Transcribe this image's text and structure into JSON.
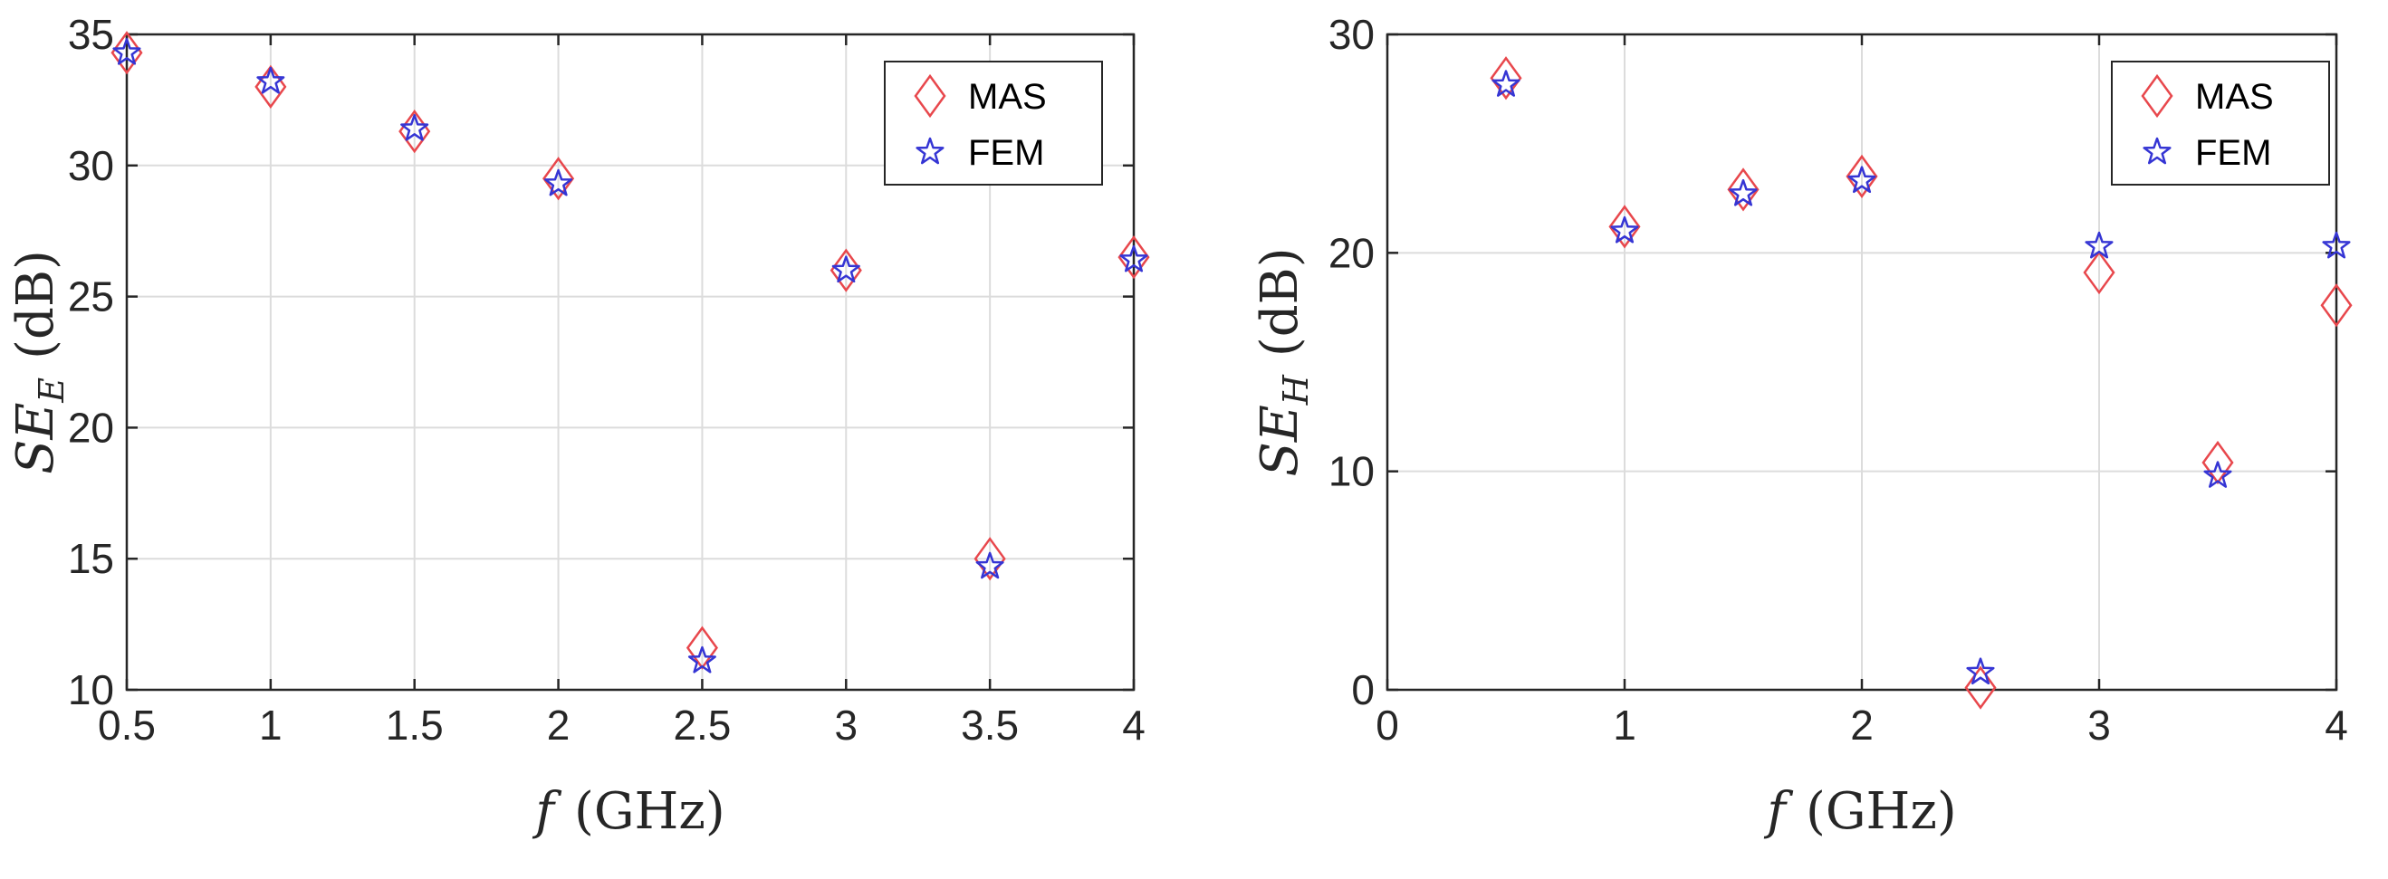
{
  "chart_data": [
    {
      "type": "scatter",
      "xlabel": {
        "symbol": "f",
        "unit": "(GHz)"
      },
      "ylabel": {
        "symbol": "SE",
        "subscript": "E",
        "unit": "(dB)"
      },
      "xlim": [
        0.5,
        4
      ],
      "ylim": [
        10,
        35
      ],
      "xticks": [
        "0.5",
        "1",
        "1.5",
        "2",
        "2.5",
        "3",
        "3.5",
        "4"
      ],
      "yticks": [
        "10",
        "15",
        "20",
        "25",
        "30",
        "35"
      ],
      "grid": true,
      "legend": "top-right",
      "series": [
        {
          "name": "MAS",
          "marker": "diamond",
          "color": "#e8474c",
          "x": [
            0.5,
            1,
            1.5,
            2,
            2.5,
            3,
            3.5,
            4
          ],
          "y": [
            34.3,
            33.0,
            31.3,
            29.5,
            11.6,
            26.0,
            15.0,
            26.5
          ]
        },
        {
          "name": "FEM",
          "marker": "star",
          "color": "#3535d4",
          "x": [
            0.5,
            1,
            1.5,
            2,
            2.5,
            3,
            3.5,
            4
          ],
          "y": [
            34.3,
            33.2,
            31.4,
            29.3,
            11.1,
            26.0,
            14.7,
            26.4
          ]
        }
      ]
    },
    {
      "type": "scatter",
      "xlabel": {
        "symbol": "f",
        "unit": "(GHz)"
      },
      "ylabel": {
        "symbol": "SE",
        "subscript": "H",
        "unit": "(dB)"
      },
      "xlim": [
        0,
        4
      ],
      "ylim": [
        0,
        30
      ],
      "xticks": [
        "0",
        "1",
        "2",
        "3",
        "4"
      ],
      "yticks": [
        "0",
        "10",
        "20",
        "30"
      ],
      "grid": true,
      "legend": "top-right",
      "series": [
        {
          "name": "MAS",
          "marker": "diamond",
          "color": "#e8474c",
          "x": [
            0.5,
            1,
            1.5,
            2,
            2.5,
            3,
            3.5,
            4
          ],
          "y": [
            28.0,
            21.2,
            22.9,
            23.5,
            0.1,
            19.1,
            10.4,
            17.6
          ]
        },
        {
          "name": "FEM",
          "marker": "star",
          "color": "#3535d4",
          "x": [
            0.5,
            1,
            1.5,
            2,
            2.5,
            3,
            3.5,
            4
          ],
          "y": [
            27.7,
            21.0,
            22.7,
            23.3,
            0.8,
            20.3,
            9.8,
            20.3
          ]
        }
      ]
    }
  ]
}
